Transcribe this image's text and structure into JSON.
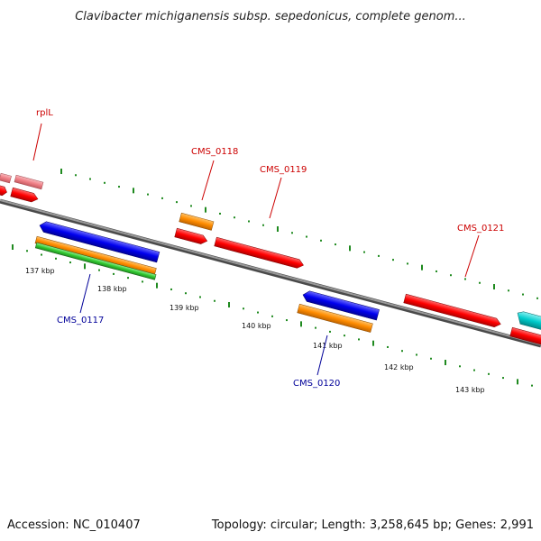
{
  "title": "Clavibacter michiganensis subsp. sepedonicus, complete genom...",
  "footer": {
    "accession": "Accession: NC_010407",
    "summary": "Topology: circular; Length: 3,258,645 bp; Genes: 2,991"
  },
  "colors": {
    "backbone": "#808080",
    "backbone_dark": "#4a4a4a",
    "tick": "#1f8a1f",
    "label_forward": "#cc0000",
    "label_reverse": "#000099",
    "gene_red": "#ff0000",
    "gene_pink": "#ef7f86",
    "gene_orange": "#ff8c00",
    "gene_blue": "#0000ee",
    "gene_green": "#33cc33",
    "gene_cyan": "#00cccc"
  },
  "tick_labels": [
    "137 kbp",
    "138 kbp",
    "139 kbp",
    "140 kbp",
    "141 kbp",
    "142 kbp",
    "143 kbp"
  ],
  "gene_labels": {
    "rplL": "rplL",
    "cms0117": "CMS_0117",
    "cms0118": "CMS_0118",
    "cms0119": "CMS_0119",
    "cms0120": "CMS_0120",
    "cms0121": "CMS_0121"
  }
}
